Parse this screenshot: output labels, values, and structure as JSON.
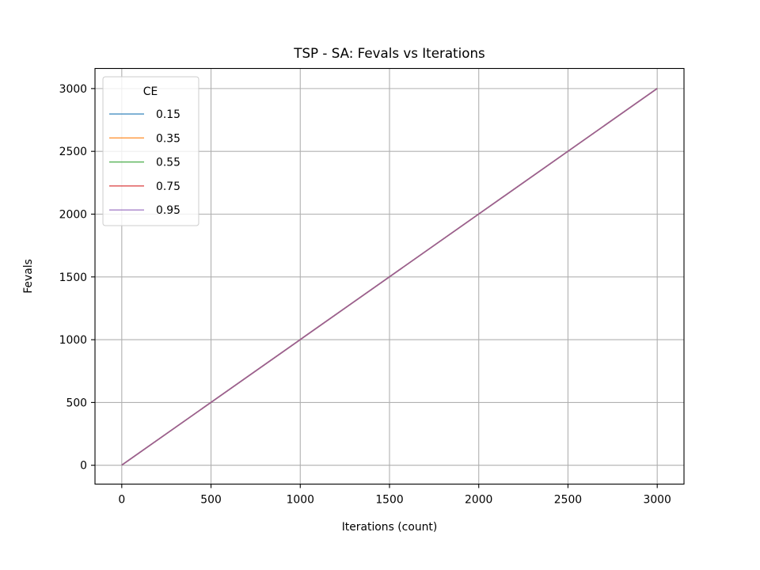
{
  "chart_data": {
    "type": "line",
    "title": "TSP - SA: Fevals vs Iterations",
    "xlabel": "Iterations (count)",
    "ylabel": "Fevals",
    "xlim": [
      -150,
      3150
    ],
    "ylim": [
      -150,
      3160
    ],
    "xticks": [
      0,
      500,
      1000,
      1500,
      2000,
      2500,
      3000
    ],
    "yticks": [
      0,
      500,
      1000,
      1500,
      2000,
      2500,
      3000
    ],
    "grid": true,
    "legend": {
      "title": "CE",
      "placement": "upper left"
    },
    "series": [
      {
        "name": "0.15",
        "color": "#1f77b4",
        "x": [
          0,
          3000
        ],
        "y": [
          1,
          3001
        ]
      },
      {
        "name": "0.35",
        "color": "#ff7f0e",
        "x": [
          0,
          3000
        ],
        "y": [
          1,
          3001
        ]
      },
      {
        "name": "0.55",
        "color": "#2ca02c",
        "x": [
          0,
          3000
        ],
        "y": [
          1,
          3001
        ]
      },
      {
        "name": "0.75",
        "color": "#d62728",
        "x": [
          0,
          3000
        ],
        "y": [
          1,
          3001
        ]
      },
      {
        "name": "0.95",
        "color": "#9467bd",
        "x": [
          0,
          3000
        ],
        "y": [
          1,
          3001
        ]
      }
    ]
  }
}
